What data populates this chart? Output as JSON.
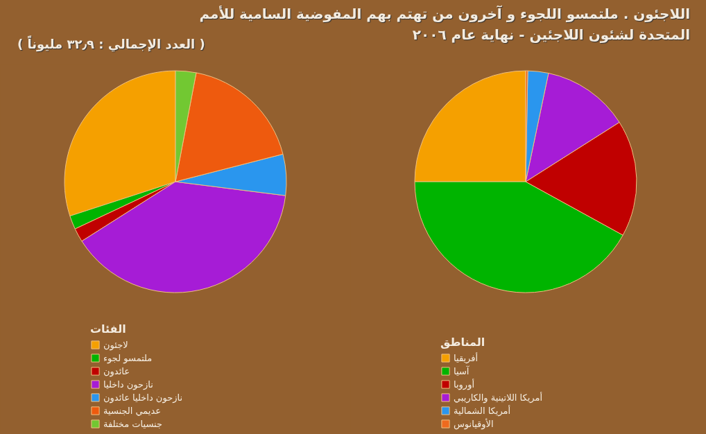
{
  "chart_data": [
    {
      "type": "pie",
      "title": "اللاجئون . ملتمسو اللجوء و آخرون من تهتم بهم المفوضية السامية للأمم المتحدة لشئون اللاجئين - نهاية عام ٢٠٠٦",
      "subtitle": "( العدد الإجمالي : ٣٢٫٩ مليوناً )",
      "legend_title": "الفئات",
      "legend": "bottom",
      "categories": [
        "لاجئون",
        "ملتمسو لجوء",
        "عائدون",
        "نازحون داخليا",
        "نازحون داخليا عائدون",
        "عديمي الجنسية",
        "جنسيات مختلفة"
      ],
      "values": [
        30,
        2,
        2,
        39,
        6,
        18,
        3
      ],
      "colors": [
        "#f5a000",
        "#00b400",
        "#c00000",
        "#a61cd6",
        "#2a96ee",
        "#ee5a0e",
        "#72c832"
      ]
    },
    {
      "type": "pie",
      "legend_title": "المناطق",
      "legend": "bottom",
      "categories": [
        "أفريقيا",
        "آسيا",
        "أوروبا",
        "أمريكا اللاتينية والكاريبي",
        "أمريكا الشمالية",
        "الأوقيانوس"
      ],
      "values": [
        25,
        42,
        17,
        12.7,
        3,
        0.3
      ],
      "colors": [
        "#f5a000",
        "#00b400",
        "#c00000",
        "#a61cd6",
        "#2a96ee",
        "#ee6a1e"
      ]
    }
  ]
}
